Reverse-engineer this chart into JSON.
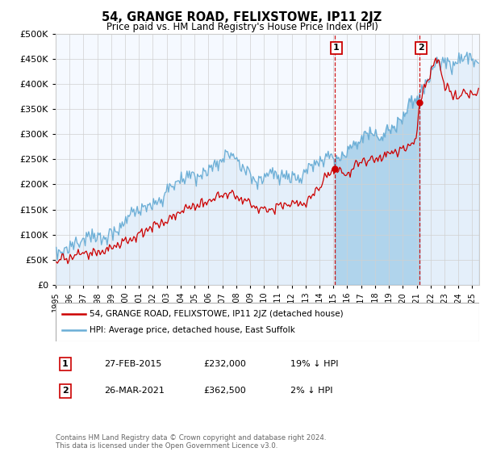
{
  "title": "54, GRANGE ROAD, FELIXSTOWE, IP11 2JZ",
  "subtitle": "Price paid vs. HM Land Registry's House Price Index (HPI)",
  "hpi_label": "HPI: Average price, detached house, East Suffolk",
  "property_label": "54, GRANGE ROAD, FELIXSTOWE, IP11 2JZ (detached house)",
  "sale1_date": "27-FEB-2015",
  "sale1_price": "£232,000",
  "sale1_hpi": "19% ↓ HPI",
  "sale2_date": "26-MAR-2021",
  "sale2_price": "£362,500",
  "sale2_hpi": "2% ↓ HPI",
  "footer": "Contains HM Land Registry data © Crown copyright and database right 2024.\nThis data is licensed under the Open Government Licence v3.0.",
  "ylim": [
    0,
    500000
  ],
  "yticks": [
    0,
    50000,
    100000,
    150000,
    200000,
    250000,
    300000,
    350000,
    400000,
    450000,
    500000
  ],
  "hpi_color": "#6baed6",
  "property_color": "#cc0000",
  "sale_marker_color": "#cc0000",
  "vline_color": "#cc0000",
  "background_color": "#ffffff",
  "plot_bg_color": "#f5f9ff",
  "annotation_box_color": "#cc0000",
  "fill_color": "#d0e8f8",
  "sale1_x": 2015.12,
  "sale1_y": 232000,
  "sale2_x": 2021.21,
  "sale2_y": 362500,
  "xlim_left": 1995.0,
  "xlim_right": 2025.5
}
